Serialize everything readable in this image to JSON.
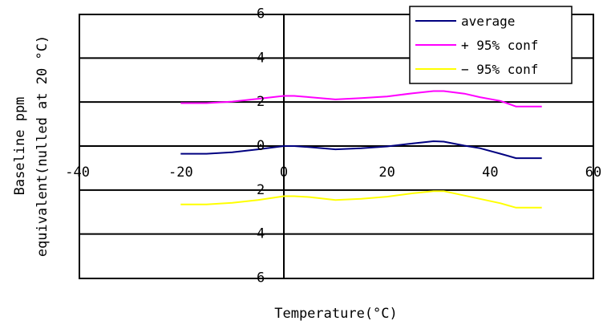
{
  "chart_data": {
    "type": "line",
    "title": "",
    "xlabel": "Temperature(°C)",
    "ylabel_line1": "Baseline ppm",
    "ylabel_line2": "equivalent(nulled at 20 °C)",
    "xlim": [
      -40,
      60
    ],
    "ylim": [
      -6,
      6
    ],
    "x_ticks": [
      -40,
      -20,
      0,
      20,
      40,
      60
    ],
    "x_tick_labels": [
      "-40",
      "-20",
      "0",
      "20",
      "40",
      "60"
    ],
    "y_ticks": [
      6,
      4,
      2,
      0,
      -2,
      -4,
      -6
    ],
    "y_tick_labels": [
      "6",
      "4",
      "2",
      "0",
      "2",
      "4",
      "6"
    ],
    "grid": "horizontal",
    "legend_position": "top-right",
    "x": [
      -20,
      -15,
      -10,
      -5,
      0,
      2,
      5,
      10,
      15,
      20,
      25,
      29,
      31,
      35,
      38,
      42,
      45,
      50
    ],
    "series": [
      {
        "name": "average",
        "color": "#000080",
        "values": [
          -0.35,
          -0.35,
          -0.28,
          -0.15,
          0.0,
          0.0,
          -0.05,
          -0.15,
          -0.1,
          -0.02,
          0.12,
          0.22,
          0.2,
          0.02,
          -0.1,
          -0.35,
          -0.55,
          -0.55
        ]
      },
      {
        "name": "+ 95% conf",
        "color": "#ff00ff",
        "values": [
          1.95,
          1.95,
          2.02,
          2.15,
          2.28,
          2.28,
          2.22,
          2.12,
          2.18,
          2.25,
          2.4,
          2.5,
          2.5,
          2.38,
          2.22,
          2.05,
          1.8,
          1.8
        ]
      },
      {
        "name": "− 95% conf",
        "color": "#ffff00",
        "values": [
          -2.65,
          -2.65,
          -2.58,
          -2.45,
          -2.28,
          -2.28,
          -2.32,
          -2.45,
          -2.4,
          -2.3,
          -2.15,
          -2.05,
          -2.05,
          -2.25,
          -2.4,
          -2.6,
          -2.8,
          -2.8
        ]
      }
    ]
  }
}
